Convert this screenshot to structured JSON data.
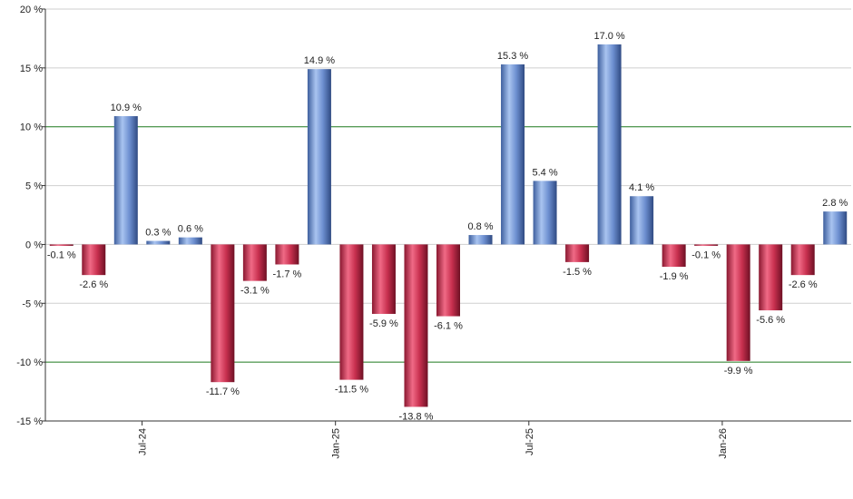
{
  "chart_data": {
    "type": "bar",
    "title": "",
    "xlabel": "",
    "ylabel": "",
    "ylim": [
      -15,
      20
    ],
    "y_ticks": [
      -15,
      -10,
      -5,
      0,
      5,
      10,
      15,
      20
    ],
    "y_tick_labels": [
      "-15 %",
      "-10 %",
      "-5 %",
      "0 %",
      "5 %",
      "10 %",
      "15 %",
      "20 %"
    ],
    "highlighted_gridlines": [
      10,
      -10
    ],
    "x_tick_labels": [
      "Jul-24",
      "Jan-25",
      "Jul-25",
      "Jan-26"
    ],
    "x_tick_bar_index": [
      2,
      8,
      14,
      20
    ],
    "values": [
      -0.1,
      -2.6,
      10.9,
      0.3,
      0.6,
      -11.7,
      -3.1,
      -1.7,
      14.9,
      -11.5,
      -5.9,
      -13.8,
      -6.1,
      0.8,
      15.3,
      5.4,
      -1.5,
      17.0,
      4.1,
      -1.9,
      -0.1,
      -9.9,
      -5.6,
      -2.6,
      2.8
    ],
    "value_labels": [
      "-0.1 %",
      "-2.6 %",
      "10.9 %",
      "0.3 %",
      "0.6 %",
      "-11.7 %",
      "-3.1 %",
      "-1.7 %",
      "14.9 %",
      "-11.5 %",
      "-5.9 %",
      "-13.8 %",
      "-6.1 %",
      "0.8 %",
      "15.3 %",
      "5.4 %",
      "-1.5 %",
      "17.0 %",
      "4.1 %",
      "-1.9 %",
      "-0.1 %",
      "-9.9 %",
      "-5.6 %",
      "-2.6 %",
      "2.8 %"
    ],
    "positive_color": "#4f73b8",
    "negative_color": "#b0203e",
    "grid": true,
    "legend": "none"
  }
}
